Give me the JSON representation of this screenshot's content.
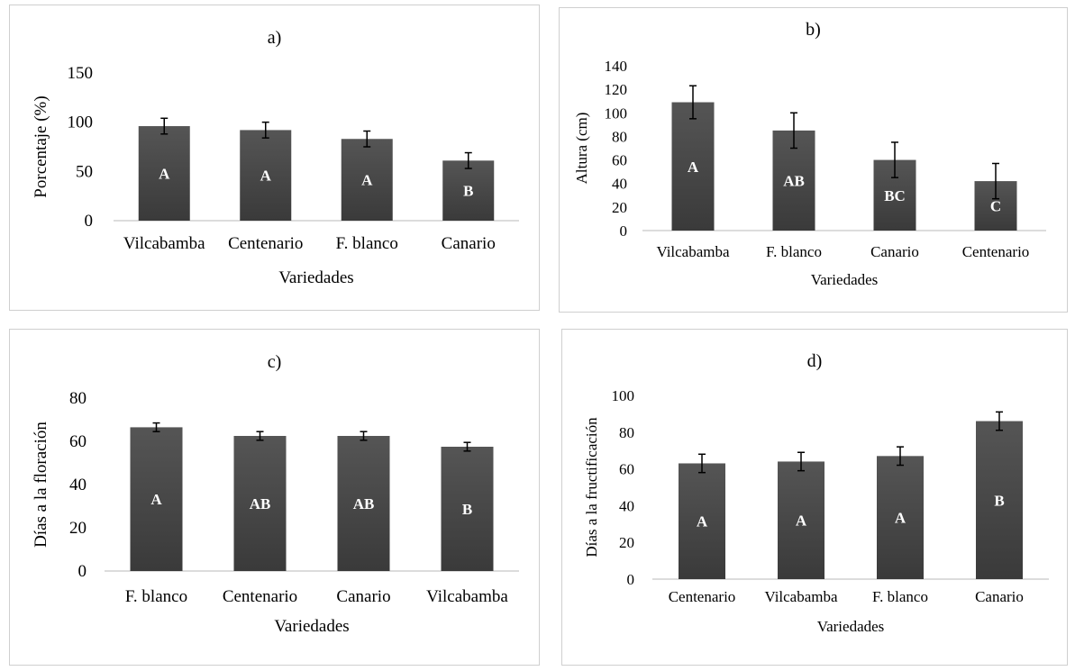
{
  "chart_data": [
    {
      "type": "bar",
      "title": "a)",
      "xlabel": "Variedades",
      "ylabel": "Porcentaje (%)",
      "ylim": [
        0,
        150
      ],
      "yticks": [
        0,
        50,
        100,
        150
      ],
      "categories": [
        "Vilcabamba",
        "Centenario",
        "F. blanco",
        "Canario"
      ],
      "values": [
        96,
        92,
        83,
        61
      ],
      "errors": [
        8,
        8,
        8,
        8
      ],
      "letters": [
        "A",
        "A",
        "A",
        "B"
      ],
      "grid": false,
      "bar_color": "#3a3a3a"
    },
    {
      "type": "bar",
      "title": "b)",
      "xlabel": "Variedades",
      "ylabel": "Altura (cm)",
      "ylim": [
        0,
        140
      ],
      "yticks": [
        0,
        20,
        40,
        60,
        80,
        100,
        120,
        140
      ],
      "categories": [
        "Vilcabamba",
        "F. blanco",
        "Canario",
        "Centenario"
      ],
      "values": [
        109,
        85,
        60,
        42
      ],
      "errors": [
        14,
        15,
        15,
        15
      ],
      "letters": [
        "A",
        "AB",
        "BC",
        "C"
      ],
      "grid": false,
      "bar_color": "#3a3a3a"
    },
    {
      "type": "bar",
      "title": "c)",
      "xlabel": "Variedades",
      "ylabel": "Días a la floración",
      "ylim": [
        0,
        80
      ],
      "yticks": [
        0,
        20,
        40,
        60,
        80
      ],
      "categories": [
        "F. blanco",
        "Centenario",
        "Canario",
        "Vilcabamba"
      ],
      "values": [
        66.5,
        62.5,
        62.5,
        57.5
      ],
      "errors": [
        2,
        2,
        2,
        2
      ],
      "letters": [
        "A",
        "AB",
        "AB",
        "B"
      ],
      "grid": false,
      "bar_color": "#3a3a3a"
    },
    {
      "type": "bar",
      "title": "d)",
      "xlabel": "Variedades",
      "ylabel": "Días a la fructificación",
      "ylim": [
        0,
        100
      ],
      "yticks": [
        0,
        20,
        40,
        60,
        80,
        100
      ],
      "categories": [
        "Centenario",
        "Vilcabamba",
        "F. blanco",
        "Canario"
      ],
      "values": [
        63,
        64,
        67,
        86
      ],
      "errors": [
        5,
        5,
        5,
        5
      ],
      "letters": [
        "A",
        "A",
        "A",
        "B"
      ],
      "grid": false,
      "bar_color": "#3a3a3a"
    }
  ]
}
